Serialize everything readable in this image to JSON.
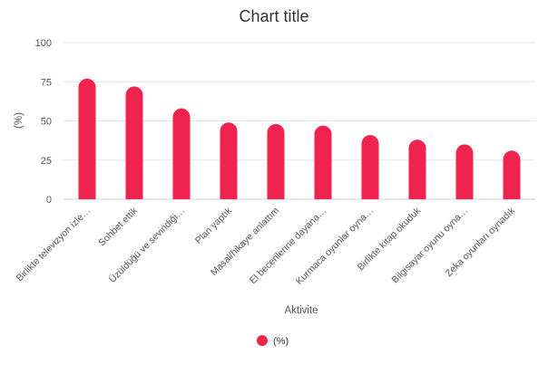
{
  "chart_data": {
    "type": "bar",
    "title": "Chart title",
    "xlabel": "Aktivite",
    "ylabel": "(%)",
    "ylim": [
      0,
      100
    ],
    "yticks": [
      0,
      25,
      50,
      75,
      100
    ],
    "grid": true,
    "legend_position": "bottom",
    "categories": [
      "Birlikte televizyon izle…",
      "Sohbet ettik",
      "Üzüldüğü ve sevindiği…",
      "Plan yaptık",
      "Masal/hikaye anlattım",
      "El becerilerine dayana…",
      "Kurmaca oyunlar oyna…",
      "Birlikte kitap okuduk",
      "Bilgisayar oyunu oyna…",
      "Zeka oyunları oynadık"
    ],
    "series": [
      {
        "name": "(%)",
        "color": "#f0234f",
        "values": [
          77,
          72,
          58,
          49,
          48,
          47,
          41,
          38,
          35,
          31
        ]
      }
    ]
  }
}
